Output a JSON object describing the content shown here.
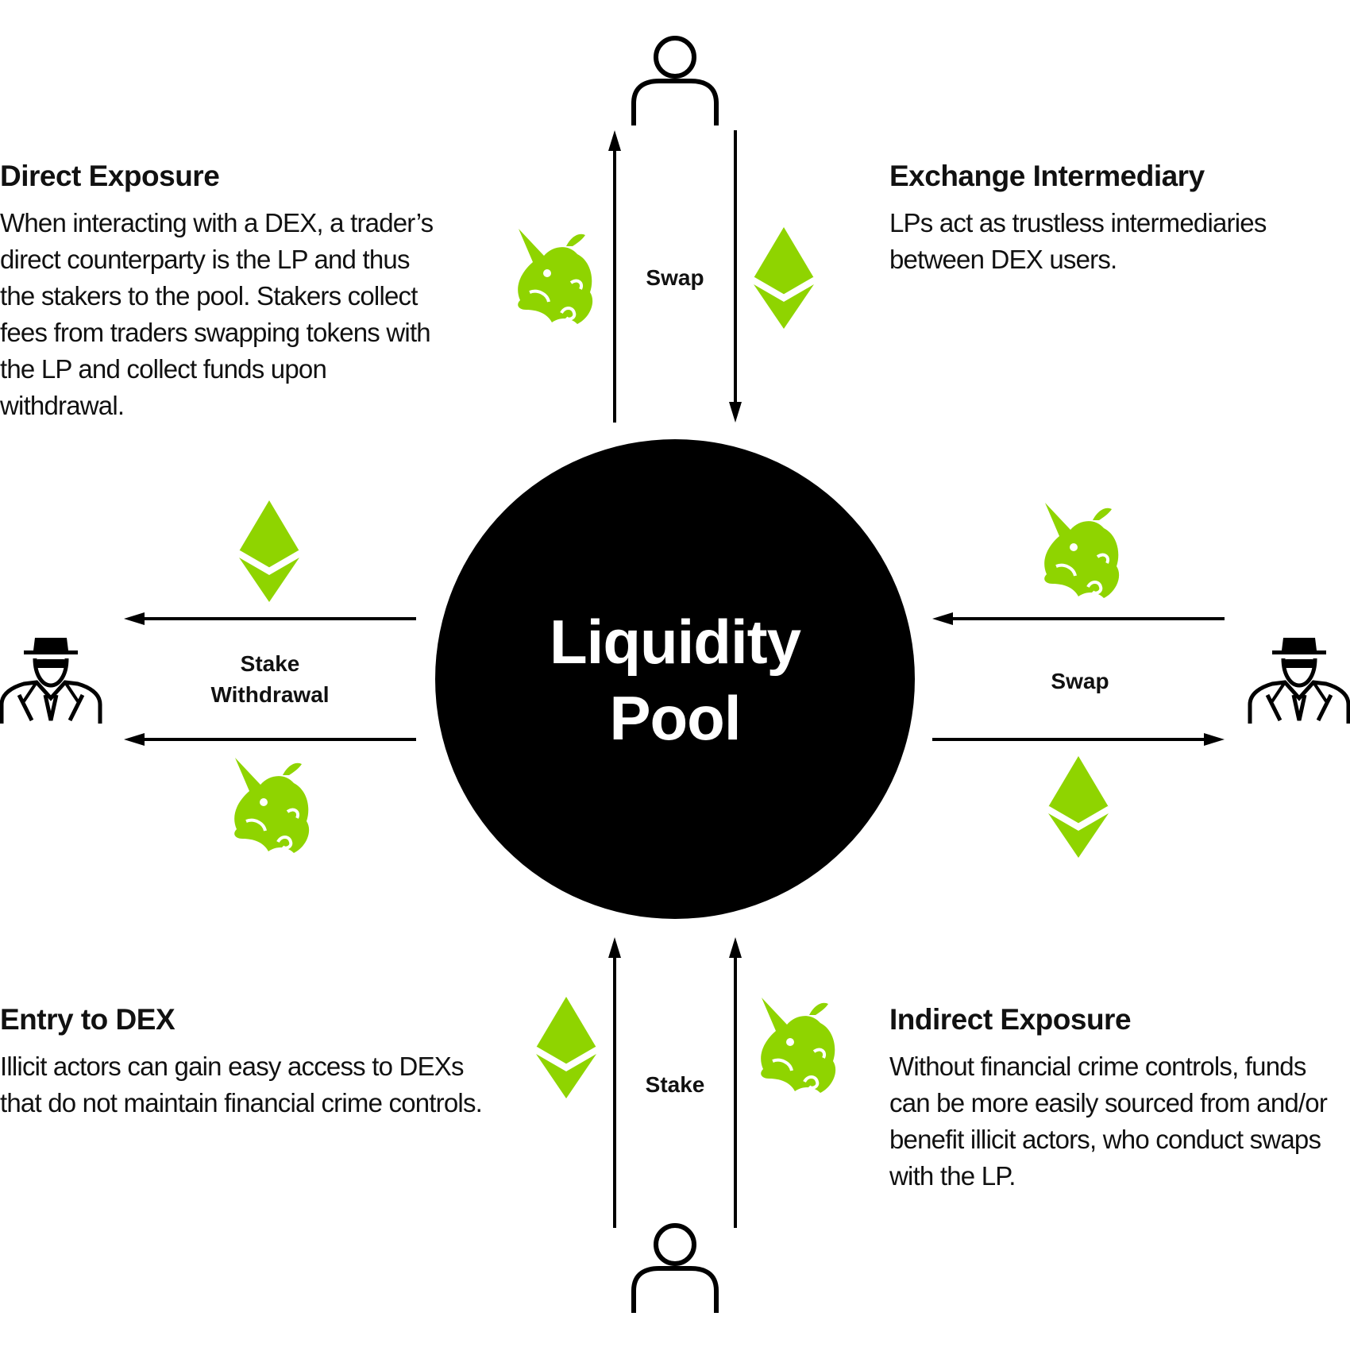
{
  "colors": {
    "accent_green": "#8fd400",
    "ink": "#000000",
    "background": "#ffffff"
  },
  "pool": {
    "line1": "Liquidity",
    "line2": "Pool"
  },
  "flows": {
    "top": "Swap",
    "left_line1": "Stake",
    "left_line2": "Withdrawal",
    "right": "Swap",
    "bottom": "Stake"
  },
  "sections": {
    "direct_exposure": {
      "title": "Direct Exposure",
      "body": "When interacting with a DEX, a trader’s direct counterparty is the LP and thus the stakers to the pool. Stakers collect fees from traders swapping tokens with the LP and collect funds upon withdrawal."
    },
    "exchange_intermediary": {
      "title": "Exchange Intermediary",
      "body": "LPs act as trustless intermediaries between DEX users."
    },
    "entry_to_dex": {
      "title": "Entry to DEX",
      "body": "Illicit actors can gain easy access to DEXs that do not maintain financial crime controls."
    },
    "indirect_exposure": {
      "title": "Indirect Exposure",
      "body": "Without financial crime controls, funds can be more easily sourced from and/or benefit illicit actors, who conduct swaps with the LP."
    }
  },
  "icons": {
    "user": "user-icon",
    "illicit_actor": "spy-icon",
    "token_a": "ethereum-icon",
    "token_b": "unicorn-icon"
  }
}
